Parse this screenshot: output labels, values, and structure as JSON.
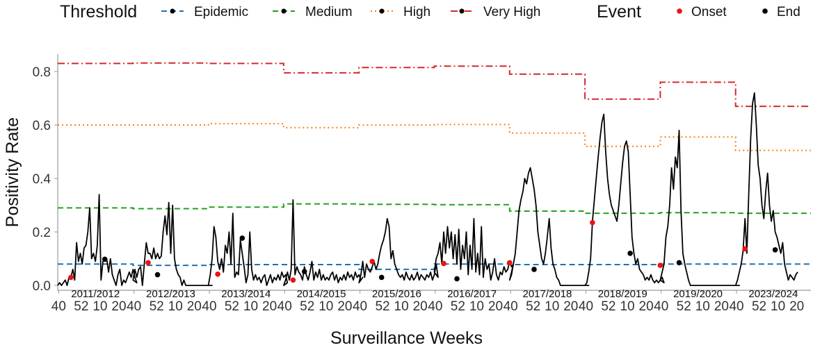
{
  "chart_data": {
    "type": "line",
    "xlabel": "Surveillance Weeks",
    "ylabel": "Positivity Rate",
    "ylim": [
      0,
      0.87
    ],
    "y_ticks": [
      "0.0",
      "0.2",
      "0.4",
      "0.6",
      "0.8"
    ],
    "y_tick_values": [
      0,
      0.2,
      0.4,
      0.6,
      0.8
    ],
    "x_tick_labels": [
      "40",
      "52",
      "10",
      "20"
    ],
    "x_tick_week_offsets": [
      0,
      12,
      22,
      32
    ],
    "season_labels": [
      "2011/2012",
      "2012/2013",
      "2013/2014",
      "2014/2015",
      "2015/2016",
      "2016/2017",
      "2017/2018",
      "2018/2019",
      "2019/2020",
      "2023/2024"
    ],
    "legend": {
      "threshold_title": "Threshold",
      "event_title": "Event",
      "threshold_items": [
        {
          "label": "Epidemic",
          "color": "#1f6fb4",
          "dash": "dashed"
        },
        {
          "label": "Medium",
          "color": "#22a022",
          "dash": "dashed"
        },
        {
          "label": "High",
          "color": "#ff7f0e",
          "dash": "dotted"
        },
        {
          "label": "Very High",
          "color": "#d62728",
          "dash": "dashdot"
        }
      ],
      "event_items": [
        {
          "label": "Onset",
          "color": "#ee1111"
        },
        {
          "label": "End",
          "color": "#000000"
        }
      ],
      "placement": "top"
    },
    "thresholds": {
      "Epidemic": [
        0.08,
        0.075,
        0.078,
        0.078,
        0.06,
        0.08,
        0.078,
        0.078,
        0.08,
        0.08
      ],
      "Medium": [
        0.29,
        0.287,
        0.293,
        0.305,
        0.303,
        0.302,
        0.278,
        0.27,
        0.272,
        0.27
      ],
      "High": [
        0.6,
        0.6,
        0.605,
        0.59,
        0.6,
        0.602,
        0.57,
        0.52,
        0.555,
        0.505
      ],
      "Very High": [
        0.83,
        0.832,
        0.83,
        0.795,
        0.815,
        0.82,
        0.79,
        0.697,
        0.76,
        0.67
      ]
    },
    "series": [
      {
        "values": [
          [
            0.0,
            0.01,
            0.0,
            0.01,
            0.02,
            0.0,
            0.03,
            0.03,
            0.06,
            0.02,
            0.16,
            0.09,
            0.12,
            0.08,
            0.14,
            0.15,
            0.2,
            0.29,
            0.1,
            0.12,
            0.09,
            0.15,
            0.34,
            0.02,
            0.09,
            0.1,
            0.1,
            0.05,
            0.1,
            0.04,
            0.02,
            0.0,
            0.04,
            0.06,
            0.0,
            0.02,
            0.01,
            0.03,
            0.05,
            0.03,
            0.06,
            0.03,
            0.01
          ],
          [
            0.02,
            0.06,
            0.03,
            0.06,
            0.07,
            0.0,
            0.08,
            0.16,
            0.12,
            0.12,
            0.1,
            0.14,
            0.1,
            0.12,
            0.1,
            0.11,
            0.2,
            0.26,
            0.19,
            0.31,
            0.12,
            0.3,
            0.1,
            0.06,
            0.04,
            0.03,
            0.0,
            0.02,
            0.0,
            0.0,
            0.0,
            0.0,
            0.0,
            0.0,
            0.0,
            0.0,
            0.0,
            0.0,
            0.0,
            0.0,
            0.0,
            0.0,
            0.0
          ],
          [
            0.0,
            0.04,
            0.1,
            0.22,
            0.18,
            0.09,
            0.06,
            0.1,
            0.05,
            0.15,
            0.12,
            0.2,
            0.08,
            0.27,
            0.03,
            0.05,
            0.04,
            0.17,
            0.12,
            0.07,
            0.01,
            0.04,
            0.2,
            0.06,
            0.02,
            0.04,
            0.02,
            0.03,
            0.01,
            0.03,
            0.04,
            0.0,
            0.02,
            0.04,
            0.01,
            0.03,
            0.02,
            0.04,
            0.02,
            0.05,
            0.03,
            0.04,
            0.01
          ],
          [
            0.0,
            0.02,
            0.05,
            0.02,
            0.06,
            0.32,
            0.04,
            0.07,
            0.05,
            0.04,
            0.02,
            0.07,
            0.04,
            0.02,
            0.05,
            0.09,
            0.02,
            0.05,
            0.03,
            0.06,
            0.02,
            0.04,
            0.02,
            0.03,
            0.02,
            0.04,
            0.05,
            0.02,
            0.04,
            0.01,
            0.03,
            0.02,
            0.04,
            0.02,
            0.05,
            0.03,
            0.04,
            0.02,
            0.05,
            0.03,
            0.04,
            0.02,
            0.03
          ],
          [
            0.01,
            0.04,
            0.09,
            0.03,
            0.08,
            0.06,
            0.05,
            0.07,
            0.09,
            0.06,
            0.08,
            0.12,
            0.15,
            0.17,
            0.2,
            0.25,
            0.22,
            0.1,
            0.13,
            0.08,
            0.06,
            0.04,
            0.03,
            0.04,
            0.02,
            0.05,
            0.03,
            0.02,
            0.04,
            0.02,
            0.03,
            0.05,
            0.02,
            0.04,
            0.03,
            0.02,
            0.04,
            0.03,
            0.05,
            0.02,
            0.04,
            0.08,
            0.03
          ],
          [
            0.05,
            0.1,
            0.12,
            0.16,
            0.08,
            0.2,
            0.12,
            0.22,
            0.14,
            0.2,
            0.1,
            0.19,
            0.08,
            0.21,
            0.06,
            0.15,
            0.1,
            0.2,
            0.04,
            0.15,
            0.06,
            0.25,
            0.05,
            0.12,
            0.04,
            0.22,
            0.03,
            0.1,
            0.06,
            0.08,
            0.02,
            0.05,
            0.1,
            0.04,
            0.02,
            0.05,
            0.04,
            0.07,
            0.05,
            0.06,
            0.09,
            0.07,
            0.08
          ],
          [
            0.02,
            0.04,
            0.08,
            0.12,
            0.2,
            0.28,
            0.32,
            0.35,
            0.4,
            0.38,
            0.42,
            0.44,
            0.4,
            0.36,
            0.3,
            0.2,
            0.15,
            0.1,
            0.08,
            0.12,
            0.18,
            0.25,
            0.14,
            0.08,
            0.06,
            0.03,
            0.02,
            0.0,
            0.0,
            0.0,
            0.0,
            0.0,
            0.0,
            0.0,
            0.0,
            0.0,
            0.0,
            0.0,
            0.0,
            0.0,
            0.0,
            0.0,
            0.0
          ],
          [
            0.0,
            0.01,
            0.05,
            0.1,
            0.24,
            0.32,
            0.4,
            0.48,
            0.55,
            0.61,
            0.64,
            0.5,
            0.4,
            0.34,
            0.3,
            0.28,
            0.26,
            0.24,
            0.3,
            0.38,
            0.46,
            0.52,
            0.54,
            0.5,
            0.34,
            0.18,
            0.12,
            0.08,
            0.1,
            0.06,
            0.05,
            0.04,
            0.02,
            0.03,
            0.02,
            0.04,
            0.02,
            0.01,
            0.02,
            0.01,
            0.02,
            0.03,
            0.01
          ],
          [
            0.02,
            0.05,
            0.08,
            0.18,
            0.22,
            0.3,
            0.44,
            0.36,
            0.48,
            0.44,
            0.58,
            0.28,
            0.12,
            0.08,
            0.05,
            0.02,
            0.0,
            0.0,
            0.0,
            0.0,
            0.0,
            0.0,
            0.0,
            0.0,
            0.0,
            0.0,
            0.0,
            0.0,
            0.0,
            0.0,
            0.0,
            0.0,
            0.0,
            0.0,
            0.0,
            0.0,
            0.0,
            0.0,
            0.0,
            0.0,
            0.0,
            0.0,
            0.0
          ],
          [
            0.0,
            0.02,
            0.05,
            0.08,
            0.13,
            0.25,
            0.12,
            0.35,
            0.55,
            0.68,
            0.72,
            0.6,
            0.45,
            0.4,
            0.3,
            0.25,
            0.35,
            0.42,
            0.3,
            0.24,
            0.28,
            0.2,
            0.18,
            0.15,
            0.12,
            0.16,
            0.08,
            0.05,
            0.02,
            0.04,
            0.03,
            0.02,
            0.04,
            0.05
          ]
        ]
      }
    ],
    "events": {
      "Onset": [
        [
          0,
          7,
          0.03
        ],
        [
          1,
          8,
          0.085
        ],
        [
          2,
          5,
          0.042
        ],
        [
          3,
          5,
          0.02
        ],
        [
          4,
          7,
          0.09
        ],
        [
          5,
          5,
          0.082
        ],
        [
          6,
          0,
          0.085
        ],
        [
          7,
          4,
          0.235
        ],
        [
          8,
          0,
          0.075
        ],
        [
          9,
          5,
          0.137
        ]
      ],
      "End": [
        [
          0,
          25,
          0.098
        ],
        [
          1,
          13,
          0.04
        ],
        [
          2,
          18,
          0.177
        ],
        [
          3,
          11,
          0.052
        ],
        [
          4,
          12,
          0.03
        ],
        [
          5,
          12,
          0.025
        ],
        [
          6,
          13,
          0.06
        ],
        [
          7,
          24,
          0.12
        ],
        [
          8,
          10,
          0.085
        ],
        [
          9,
          21,
          0.133
        ]
      ]
    }
  }
}
